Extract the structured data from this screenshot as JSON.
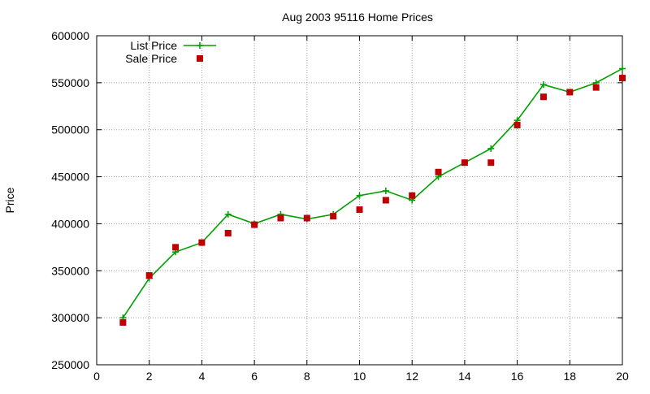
{
  "chart_data": {
    "type": "line",
    "title": "Aug 2003 95116 Home Prices",
    "xlabel": "",
    "ylabel": "Price",
    "xlim": [
      0,
      20
    ],
    "ylim": [
      250000,
      600000
    ],
    "xticks": [
      0,
      2,
      4,
      6,
      8,
      10,
      12,
      14,
      16,
      18,
      20
    ],
    "yticks": [
      250000,
      300000,
      350000,
      400000,
      450000,
      500000,
      550000,
      600000
    ],
    "grid": true,
    "legend_position": "top-left",
    "series": [
      {
        "name": "List Price",
        "style": "line-plus",
        "color": "#00a000",
        "x": [
          1,
          2,
          3,
          4,
          5,
          6,
          7,
          8,
          9,
          10,
          11,
          12,
          13,
          14,
          15,
          16,
          17,
          18,
          19,
          20
        ],
        "values": [
          300000,
          342000,
          370000,
          380000,
          410000,
          400000,
          410000,
          405000,
          410000,
          430000,
          435000,
          425000,
          450000,
          465000,
          480000,
          510000,
          548000,
          540000,
          550000,
          565000
        ]
      },
      {
        "name": "Sale Price",
        "style": "square",
        "color": "#c00000",
        "x": [
          1,
          2,
          3,
          4,
          5,
          6,
          7,
          8,
          9,
          10,
          11,
          12,
          13,
          14,
          15,
          16,
          17,
          18,
          19,
          20
        ],
        "values": [
          295000,
          345000,
          375000,
          380000,
          390000,
          399000,
          406000,
          406000,
          408000,
          415000,
          425000,
          430000,
          455000,
          465000,
          465000,
          505000,
          535000,
          540000,
          545000,
          555000
        ]
      }
    ]
  }
}
